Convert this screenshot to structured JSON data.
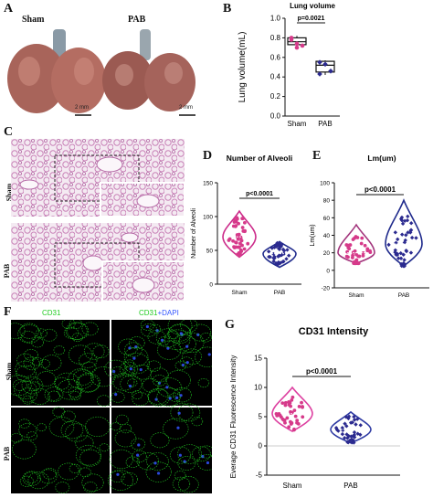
{
  "panel_a": {
    "letter": "A",
    "label_left": "Sham",
    "label_right": "PAB",
    "scale_left": "2 mm",
    "scale_right": "2 mm"
  },
  "panel_c": {
    "letter": "C",
    "row1": "Sham",
    "row2": "PAB"
  },
  "panel_f": {
    "letter": "F",
    "col1": "CD31",
    "col2_a": "CD31",
    "col2_b": "+DAPI",
    "row1": "Sham",
    "row2": "PAB"
  },
  "colors": {
    "sham_box": "#222222",
    "pab_box": "#222222",
    "sham_points": "#d63a8a",
    "pab_points": "#2b2a8f",
    "violin_D_sham": "#cc2b8a",
    "violin_D_pab": "#1f2a8c",
    "violin_G_sham": "#dd3fa0",
    "violin_G_pab": "#2e3aa3",
    "cd31_green": "#22cc22",
    "dapi_blue": "#3355ff"
  },
  "chart_data": [
    {
      "panel": "B",
      "type": "box",
      "title": "Lung volume",
      "ylabel": "Lung volume(mL)",
      "xlabel": "",
      "categories": [
        "Sham",
        "PAB"
      ],
      "ylim": [
        0.0,
        1.0
      ],
      "yticks": [
        "0.0",
        "0.2",
        "0.4",
        "0.6",
        "0.8",
        "1.0"
      ],
      "series": [
        {
          "values": [
            0.78,
            0.74,
            0.72,
            0.8,
            0.7
          ],
          "box": [
            0.7,
            0.73,
            0.76,
            0.8,
            0.82
          ]
        },
        {
          "values": [
            0.55,
            0.53,
            0.46,
            0.43
          ],
          "box": [
            0.42,
            0.45,
            0.52,
            0.56,
            0.57
          ]
        }
      ],
      "annotation": "p=0.0021"
    },
    {
      "panel": "D",
      "type": "violin",
      "title": "Number of Alveoli",
      "ylabel": "Number of Alveoli",
      "xlabel": "",
      "categories": [
        "Sham",
        "PAB"
      ],
      "ylim": [
        0,
        150
      ],
      "yticks": [
        "0",
        "50",
        "100",
        "150"
      ],
      "series": [
        {
          "median": 70,
          "min": 40,
          "max": 108,
          "spread": 60
        },
        {
          "median": 45,
          "min": 25,
          "max": 63,
          "spread": 65
        }
      ],
      "annotation": "p<0.0001"
    },
    {
      "panel": "E",
      "type": "violin",
      "title": "Lm(um)",
      "ylabel": "Lm(um)",
      "xlabel": "",
      "categories": [
        "Sham",
        "PAB"
      ],
      "ylim": [
        -20,
        100
      ],
      "yticks": [
        "-20",
        "0",
        "20",
        "40",
        "60",
        "80",
        "100"
      ],
      "series": [
        {
          "median": 20,
          "min": 8,
          "max": 52,
          "spread": 25
        },
        {
          "median": 30,
          "min": 5,
          "max": 80,
          "spread": 40
        }
      ],
      "annotation": "p<0.0001"
    },
    {
      "panel": "G",
      "type": "violin",
      "title": "CD31 Intensity",
      "ylabel": "Everage CD31 Fluorescence Intensity",
      "xlabel": "",
      "categories": [
        "Sham",
        "PAB"
      ],
      "ylim": [
        -5,
        15
      ],
      "yticks": [
        "-5",
        "0",
        "5",
        "10",
        "15"
      ],
      "series": [
        {
          "median": 5.5,
          "min": 2.5,
          "max": 10.0,
          "spread": 40
        },
        {
          "median": 2.8,
          "min": 0.5,
          "max": 5.8,
          "spread": 40
        }
      ],
      "annotation": "p<0.0001"
    }
  ]
}
